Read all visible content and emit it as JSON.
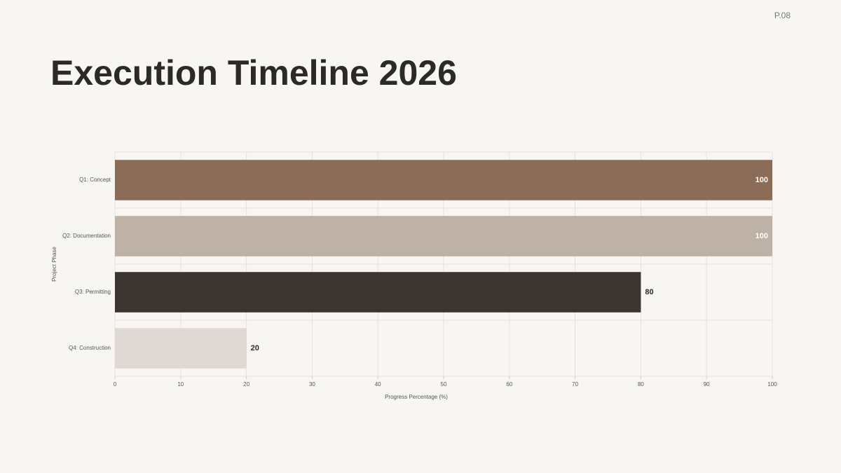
{
  "page_label": "P.08",
  "chart_data": {
    "type": "bar",
    "orientation": "horizontal",
    "title": "Execution Timeline 2026",
    "categories": [
      "Q1: Concept",
      "Q2: Documentation",
      "Q3: Permitting",
      "Q4: Construction"
    ],
    "values": [
      100,
      100,
      80,
      20
    ],
    "colors": [
      "#8b6c56",
      "#bdb2a5",
      "#3c342e",
      "#e0d9d3"
    ],
    "xlabel": "Progress Percentage (%)",
    "ylabel": "Project Phase",
    "xlim": [
      0,
      100
    ],
    "xticks": [
      0,
      10,
      20,
      30,
      40,
      50,
      60,
      70,
      80,
      90,
      100
    ],
    "grid": true
  }
}
